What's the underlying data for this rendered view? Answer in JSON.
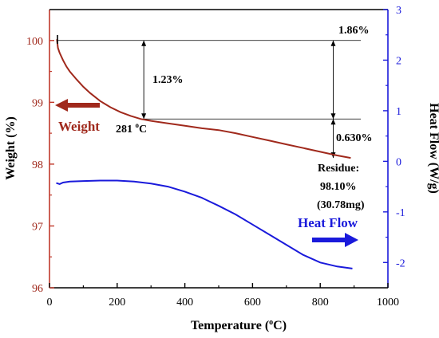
{
  "chart_data": {
    "type": "line",
    "xlabel": "Temperature (",
    "xlabel_sup": "o",
    "xlabel_end": "C)",
    "ylabel_left": "Weight (%)",
    "ylabel_right": "Heat Flow (W/g)",
    "xlim": [
      0,
      1000
    ],
    "ylim_left": [
      96,
      100.5
    ],
    "ylim_right": [
      -2.5,
      3
    ],
    "x_ticks": [
      "0",
      "200",
      "400",
      "600",
      "800",
      "1000"
    ],
    "x_tick_values": [
      0,
      200,
      400,
      600,
      800,
      1000
    ],
    "y_left_ticks": [
      "96",
      "97",
      "98",
      "99",
      "100"
    ],
    "y_left_tick_values": [
      96,
      97,
      98,
      99,
      100
    ],
    "y_right_ticks": [
      "-2",
      "-1",
      "0",
      "1",
      "2",
      "3"
    ],
    "y_right_tick_values": [
      -2,
      -1,
      0,
      1,
      2,
      3
    ],
    "series": [
      {
        "name": "Weight",
        "axis": "left",
        "color": "#a0291c",
        "x": [
          22,
          25,
          30,
          40,
          50,
          60,
          80,
          100,
          120,
          150,
          180,
          210,
          240,
          270,
          300,
          350,
          400,
          450,
          500,
          550,
          600,
          650,
          700,
          750,
          800,
          850,
          890
        ],
        "y": [
          100.02,
          99.88,
          99.8,
          99.68,
          99.58,
          99.5,
          99.37,
          99.25,
          99.15,
          99.02,
          98.92,
          98.84,
          98.78,
          98.73,
          98.7,
          98.66,
          98.62,
          98.58,
          98.55,
          98.5,
          98.44,
          98.38,
          98.32,
          98.26,
          98.2,
          98.14,
          98.1
        ]
      },
      {
        "name": "Heat Flow",
        "axis": "right",
        "color": "#1a1adb",
        "x": [
          20,
          30,
          40,
          60,
          100,
          150,
          200,
          250,
          300,
          350,
          400,
          450,
          500,
          550,
          600,
          650,
          700,
          750,
          800,
          850,
          895
        ],
        "y": [
          -0.43,
          -0.45,
          -0.42,
          -0.4,
          -0.39,
          -0.38,
          -0.38,
          -0.4,
          -0.44,
          -0.5,
          -0.6,
          -0.72,
          -0.88,
          -1.05,
          -1.25,
          -1.45,
          -1.65,
          -1.85,
          -2.0,
          -2.08,
          -2.12
        ]
      }
    ],
    "legend": {
      "weight_label": "Weight",
      "heatflow_label": "Heat Flow"
    },
    "annotations": {
      "temp_281": "281 ",
      "temp_281_sup": "o",
      "temp_281_end": "C",
      "loss_123": "1.23%",
      "loss_186": "1.86%",
      "loss_0630": "0.630%",
      "residue_1": "Residue:",
      "residue_2": "98.10%",
      "residue_3": "(30.78mg)"
    },
    "reference_lines": {
      "top_y": 100.0,
      "mid_y": 98.73,
      "left_x": 22,
      "right_x": 920,
      "arrow1_x": 281,
      "arrow2_x": 895,
      "bottom_y": 98.1
    },
    "grid": false
  }
}
